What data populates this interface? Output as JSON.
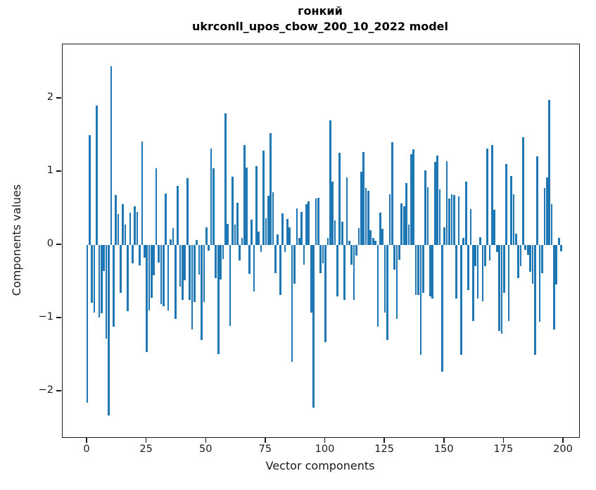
{
  "figure": {
    "title_line1": "гонкий",
    "title_line2": "ukrconll_upos_cbow_200_10_2022 model",
    "xlabel": "Vector components",
    "ylabel": "Components values"
  },
  "chart_data": {
    "type": "bar",
    "title": "гонкий",
    "subtitle": "ukrconll_upos_cbow_200_10_2022 model",
    "xlabel": "Vector components",
    "ylabel": "Components values",
    "legend": "none",
    "grid": false,
    "bar_color": "#1f77b4",
    "xticks": [
      0,
      25,
      50,
      75,
      100,
      125,
      150,
      175,
      200
    ],
    "yticks": [
      2,
      1,
      0,
      -1,
      -2
    ],
    "xlim": [
      -10.3,
      206.5
    ],
    "ylim": [
      -2.63,
      2.74
    ],
    "x_start": 0,
    "x_step": 1,
    "values": [
      -2.15,
      1.5,
      -0.79,
      -0.92,
      1.9,
      -0.99,
      -0.93,
      -0.36,
      -1.28,
      -2.33,
      2.44,
      -1.12,
      0.68,
      0.42,
      -0.65,
      0.56,
      0.28,
      -0.9,
      0.44,
      -0.25,
      0.53,
      0.45,
      -0.28,
      1.41,
      -0.17,
      -1.46,
      -0.89,
      -0.72,
      -0.41,
      1.05,
      -0.24,
      -0.81,
      -0.84,
      0.7,
      -0.89,
      0.08,
      0.23,
      -1.01,
      0.81,
      -0.57,
      -0.75,
      -0.48,
      0.91,
      -0.75,
      -1.15,
      -0.78,
      0.07,
      -0.4,
      -1.3,
      -0.78,
      0.24,
      -0.08,
      1.32,
      1.05,
      -0.45,
      -1.49,
      -0.47,
      -0.19,
      1.8,
      0.29,
      -1.11,
      0.93,
      0.28,
      0.58,
      -0.21,
      0.1,
      1.37,
      1.06,
      -0.39,
      0.35,
      -0.63,
      1.08,
      0.18,
      -0.1,
      1.29,
      0.37,
      0.67,
      1.53,
      0.72,
      -0.38,
      0.14,
      -0.68,
      0.43,
      -0.1,
      0.36,
      0.24,
      -1.6,
      -0.53,
      0.5,
      0.1,
      0.45,
      -0.27,
      0.56,
      0.6,
      -0.92,
      -2.22,
      0.63,
      0.64,
      -0.38,
      -0.25,
      -1.33,
      0.1,
      1.7,
      0.87,
      0.34,
      -0.7,
      1.26,
      0.32,
      -0.75,
      0.92,
      0.06,
      -0.27,
      -0.75,
      -0.14,
      0.23,
      1.0,
      1.27,
      0.78,
      0.74,
      0.2,
      0.1,
      0.06,
      -1.12,
      0.44,
      0.22,
      -0.92,
      -1.3,
      0.69,
      1.4,
      -0.34,
      -1.01,
      -0.2,
      0.57,
      0.53,
      0.85,
      0.28,
      1.24,
      1.31,
      -0.68,
      -0.68,
      -1.5,
      -0.65,
      1.02,
      0.79,
      -0.7,
      -0.73,
      1.13,
      1.22,
      0.76,
      -1.73,
      0.24,
      1.14,
      0.63,
      0.69,
      0.68,
      -0.73,
      0.66,
      -1.5,
      0.1,
      0.87,
      -0.62,
      0.49,
      -1.04,
      -0.29,
      -0.73,
      0.11,
      -0.77,
      -0.29,
      1.32,
      -0.21,
      1.37,
      0.48,
      -0.1,
      -1.17,
      -1.21,
      -0.65,
      1.11,
      -1.04,
      0.94,
      0.69,
      0.15,
      -0.45,
      -0.29,
      1.47,
      -0.07,
      -0.13,
      -0.37,
      -0.53,
      -1.5,
      1.21,
      -1.05,
      -0.38,
      0.78,
      0.92,
      1.98,
      0.56,
      -1.15,
      -0.54,
      0.1,
      -0.09
    ]
  }
}
